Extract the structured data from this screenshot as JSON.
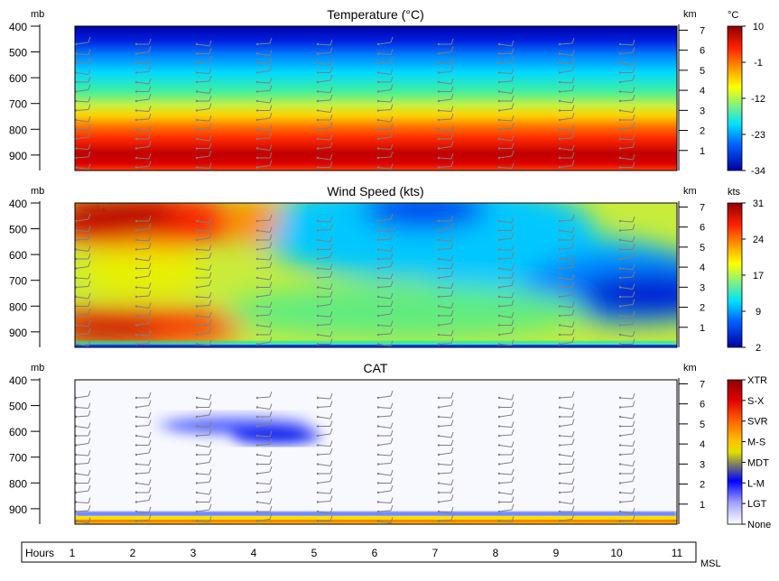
{
  "x_axis": {
    "label": "Hours",
    "ticks": [
      1,
      2,
      3,
      4,
      5,
      6,
      7,
      8,
      9,
      10,
      11
    ],
    "right_label": "MSL"
  },
  "left_axis_unit": "mb",
  "right_axis_unit": "km",
  "pressure_ticks": [
    "400",
    "500",
    "600",
    "700",
    "800",
    "900"
  ],
  "height_ticks": [
    "7",
    "6",
    "5",
    "4",
    "3",
    "2",
    "1"
  ],
  "chart_data": [
    {
      "type": "heatmap",
      "title": "Temperature (°C)",
      "x": [
        1,
        2,
        3,
        4,
        5,
        6,
        7,
        8,
        9,
        10,
        11
      ],
      "y_pressure_mb": [
        400,
        500,
        600,
        700,
        800,
        900
      ],
      "y_height_km": [
        7,
        6,
        5,
        4,
        3,
        2,
        1
      ],
      "colorbar": {
        "unit": "°C",
        "ticks": [
          "10",
          "-1",
          "-12",
          "-23",
          "-34"
        ],
        "range": [
          -34,
          10
        ]
      },
      "profile_by_height_km": [
        {
          "km": 7.2,
          "value": -34
        },
        {
          "km": 6.5,
          "value": -30
        },
        {
          "km": 5.8,
          "value": -22
        },
        {
          "km": 5.0,
          "value": -15
        },
        {
          "km": 4.3,
          "value": -10
        },
        {
          "km": 3.6,
          "value": -3
        },
        {
          "km": 2.8,
          "value": 3
        },
        {
          "km": 2.0,
          "value": 7
        },
        {
          "km": 1.2,
          "value": 10
        },
        {
          "km": 0.5,
          "value": 10
        },
        {
          "km": 0.0,
          "value": 8
        }
      ],
      "wind_barbs": true
    },
    {
      "type": "heatmap",
      "title": "Wind Speed (kts)",
      "x": [
        1,
        2,
        3,
        4,
        5,
        6,
        7,
        8,
        9,
        10,
        11
      ],
      "y_pressure_mb": [
        400,
        500,
        600,
        700,
        800,
        900
      ],
      "y_height_km": [
        7,
        6,
        5,
        4,
        3,
        2,
        1
      ],
      "colorbar": {
        "unit": "kts",
        "ticks": [
          "31",
          "24",
          "17",
          "9",
          "2"
        ],
        "range": [
          2,
          31
        ]
      },
      "features": [
        {
          "x": 1.7,
          "km": 6.6,
          "value": 31
        },
        {
          "x": 1.6,
          "km": 1.2,
          "value": 30
        },
        {
          "x": 2.5,
          "km": 5.8,
          "value": 25
        },
        {
          "x": 6.8,
          "km": 7.0,
          "value": 5
        },
        {
          "x": 10.3,
          "km": 3.2,
          "value": 2
        },
        {
          "x": 2.5,
          "km": 3.8,
          "value": 19
        },
        {
          "x": 6.5,
          "km": 2.5,
          "value": 15
        },
        {
          "x": 8.5,
          "km": 5.5,
          "value": 13
        }
      ],
      "wind_barbs": true
    },
    {
      "type": "heatmap",
      "title": "CAT",
      "x": [
        1,
        2,
        3,
        4,
        5,
        6,
        7,
        8,
        9,
        10,
        11
      ],
      "y_pressure_mb": [
        400,
        500,
        600,
        700,
        800,
        900
      ],
      "y_height_km": [
        7,
        6,
        5,
        4,
        3,
        2,
        1
      ],
      "colorbar": {
        "categories": [
          "XTR",
          "S-X",
          "SVR",
          "M-S",
          "MDT",
          "L-M",
          "LGT",
          "None"
        ]
      },
      "features": [
        {
          "x_range": [
            2.6,
            5.2
          ],
          "km_range": [
            4.6,
            5.4
          ],
          "category": "L-M"
        },
        {
          "x_range": [
            1,
            11
          ],
          "km_range": [
            0.0,
            0.3
          ],
          "category": "MDT"
        }
      ],
      "wind_barbs": true
    }
  ],
  "colors": {
    "scale": [
      "#0000a0",
      "#0030ff",
      "#00b4ff",
      "#00e6c8",
      "#64f064",
      "#d2f032",
      "#ffe600",
      "#ffa000",
      "#ff3c00",
      "#c80000",
      "#8c0000"
    ],
    "cat_scale": [
      "#ffffff",
      "#c8c8ff",
      "#0000ff",
      "#a0a050",
      "#ffff00",
      "#ff8000",
      "#ff0000",
      "#a00000"
    ],
    "barb": "#808080"
  }
}
